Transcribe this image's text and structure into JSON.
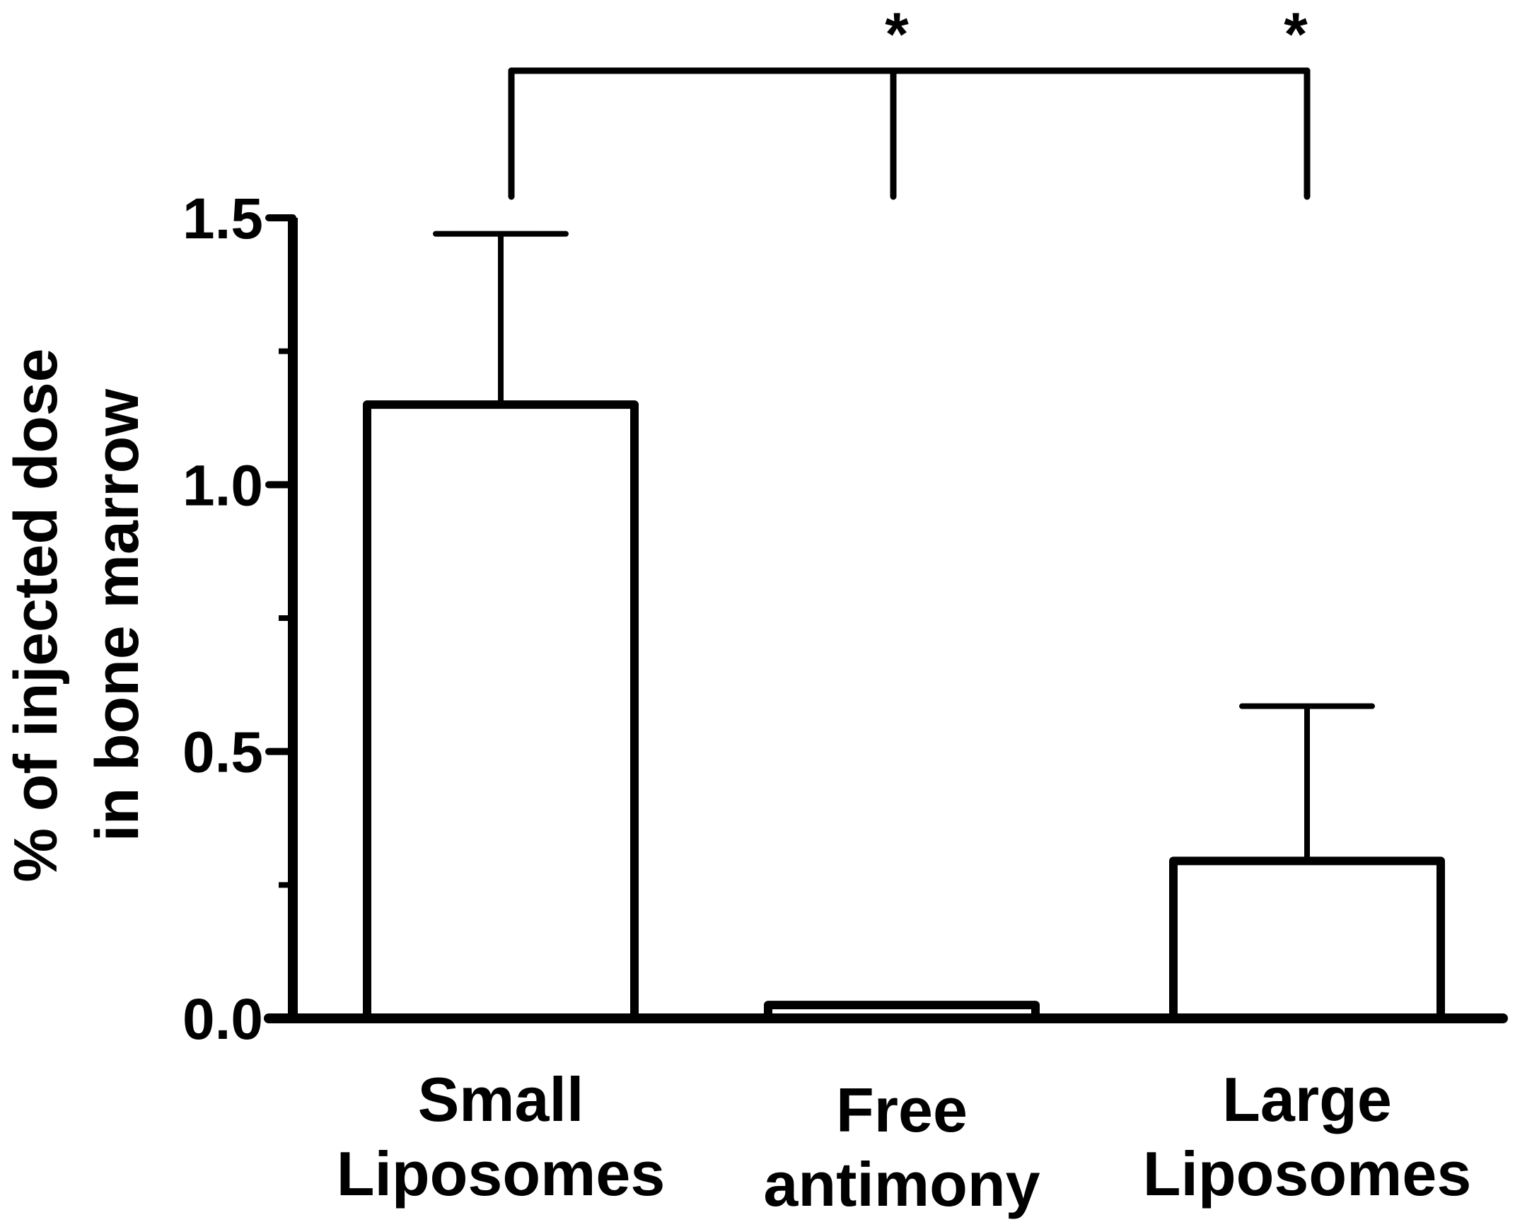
{
  "chart_data": {
    "type": "bar",
    "categories": [
      [
        "Small",
        "Liposomes"
      ],
      [
        "Free",
        "antimony"
      ],
      [
        "Large",
        "Liposomes"
      ]
    ],
    "values": [
      1.15,
      0.025,
      0.295
    ],
    "error_upper": [
      1.47,
      null,
      0.585
    ],
    "ylabel_lines": [
      "% of injected dose",
      "in bone marrow"
    ],
    "ylim": [
      0,
      1.5
    ],
    "yticks": [
      0.0,
      0.5,
      1.0,
      1.5
    ],
    "ytick_labels": [
      "0.0",
      "0.5",
      "1.0",
      "1.5"
    ],
    "grid": false,
    "bar_fill": "#ffffff",
    "bar_stroke": "#000000",
    "significance": {
      "bracket_groups": [
        0,
        1,
        2
      ],
      "stars": [
        {
          "label": "*",
          "between": [
            0,
            1
          ]
        },
        {
          "label": "*",
          "between": [
            1,
            2
          ]
        }
      ]
    }
  }
}
